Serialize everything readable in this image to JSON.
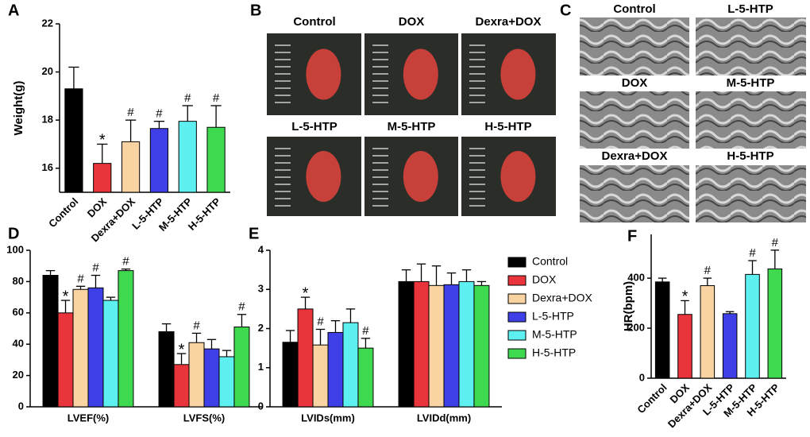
{
  "chart_data": [
    {
      "type": "bar",
      "panel": "A",
      "ylabel": "Weight(g)",
      "categories": [
        "Control",
        "DOX",
        "Dexra+DOX",
        "L-5-HTP",
        "M-5-HTP",
        "H-5-HTP"
      ],
      "values": [
        19.3,
        16.2,
        17.1,
        17.65,
        17.95,
        17.7
      ],
      "errors": [
        0.9,
        0.8,
        0.9,
        0.3,
        0.65,
        0.9
      ],
      "annotations": [
        null,
        "*",
        "#",
        "#",
        "#",
        "#"
      ],
      "colors": [
        "#000000",
        "#e8343a",
        "#f9d3a2",
        "#3f3fe8",
        "#5ef0f0",
        "#3fd94f"
      ],
      "ylim": [
        15,
        22
      ],
      "yticks": [
        16,
        18,
        20,
        22
      ]
    },
    {
      "type": "grouped-bar",
      "panel": "D",
      "categories": [
        "LVEF(%)",
        "LVFS(%)"
      ],
      "series": [
        {
          "color": "#000000",
          "values": [
            84,
            48
          ],
          "errors": [
            3,
            5
          ],
          "annotations": [
            null,
            null
          ]
        },
        {
          "color": "#e8343a",
          "values": [
            60,
            27
          ],
          "errors": [
            8,
            7
          ],
          "annotations": [
            "*",
            "*"
          ]
        },
        {
          "color": "#f9d3a2",
          "values": [
            75,
            41
          ],
          "errors": [
            2,
            6
          ],
          "annotations": [
            "#",
            "#"
          ]
        },
        {
          "color": "#3f3fe8",
          "values": [
            76,
            37
          ],
          "errors": [
            8,
            6
          ],
          "annotations": [
            "#",
            null
          ]
        },
        {
          "color": "#5ef0f0",
          "values": [
            68,
            32
          ],
          "errors": [
            2,
            4
          ],
          "annotations": [
            null,
            null
          ]
        },
        {
          "color": "#3fd94f",
          "values": [
            87,
            51
          ],
          "errors": [
            1,
            8
          ],
          "annotations": [
            "#",
            "#"
          ]
        }
      ],
      "ylim": [
        0,
        100
      ],
      "yticks": [
        0,
        20,
        40,
        60,
        80,
        100
      ]
    },
    {
      "type": "grouped-bar",
      "panel": "E",
      "legend": "right",
      "categories": [
        "LVIDs(mm)",
        "LVIDd(mm)"
      ],
      "series": [
        {
          "name": "Control",
          "color": "#000000",
          "values": [
            1.65,
            3.2
          ],
          "errors": [
            0.3,
            0.3
          ],
          "annotations": [
            null,
            null
          ]
        },
        {
          "name": "DOX",
          "color": "#e8343a",
          "values": [
            2.5,
            3.2
          ],
          "errors": [
            0.3,
            0.45
          ],
          "annotations": [
            "*",
            null
          ]
        },
        {
          "name": "Dexra+DOX",
          "color": "#f9d3a2",
          "values": [
            1.58,
            3.1
          ],
          "errors": [
            0.4,
            0.5
          ],
          "annotations": [
            "#",
            null
          ]
        },
        {
          "name": "L-5-HTP",
          "color": "#3f3fe8",
          "values": [
            1.9,
            3.12
          ],
          "errors": [
            0.3,
            0.3
          ],
          "annotations": [
            null,
            null
          ]
        },
        {
          "name": "M-5-HTP",
          "color": "#5ef0f0",
          "values": [
            2.15,
            3.2
          ],
          "errors": [
            0.35,
            0.3
          ],
          "annotations": [
            null,
            null
          ]
        },
        {
          "name": "H-5-HTP",
          "color": "#3fd94f",
          "values": [
            1.5,
            3.1
          ],
          "errors": [
            0.25,
            0.1
          ],
          "annotations": [
            "#",
            null
          ]
        }
      ],
      "ylim": [
        0,
        4
      ],
      "yticks": [
        0,
        1,
        2,
        3,
        4
      ]
    },
    {
      "type": "bar",
      "panel": "F",
      "ylabel": "HR(bpm)",
      "categories": [
        "Control",
        "DOX",
        "Dexra+DOX",
        "L-5-HTP",
        "M-5-HTP",
        "H-5-HTP"
      ],
      "values": [
        385,
        255,
        370,
        258,
        415,
        437
      ],
      "errors": [
        15,
        55,
        30,
        8,
        55,
        75
      ],
      "annotations": [
        null,
        "*",
        "#",
        null,
        "#",
        "#"
      ],
      "colors": [
        "#000000",
        "#e8343a",
        "#f9d3a2",
        "#3f3fe8",
        "#5ef0f0",
        "#3fd94f"
      ],
      "ylim": [
        0,
        575
      ],
      "yticks": [
        0,
        200,
        400
      ]
    }
  ],
  "image_panels": [
    {
      "panel": "B",
      "labels": [
        "Control",
        "DOX",
        "Dexra+DOX",
        "L-5-HTP",
        "M-5-HTP",
        "H-5-HTP"
      ]
    },
    {
      "panel": "C",
      "labels": [
        "Control",
        "L-5-HTP",
        "DOX",
        "M-5-HTP",
        "Dexra+DOX",
        "H-5-HTP"
      ]
    }
  ]
}
